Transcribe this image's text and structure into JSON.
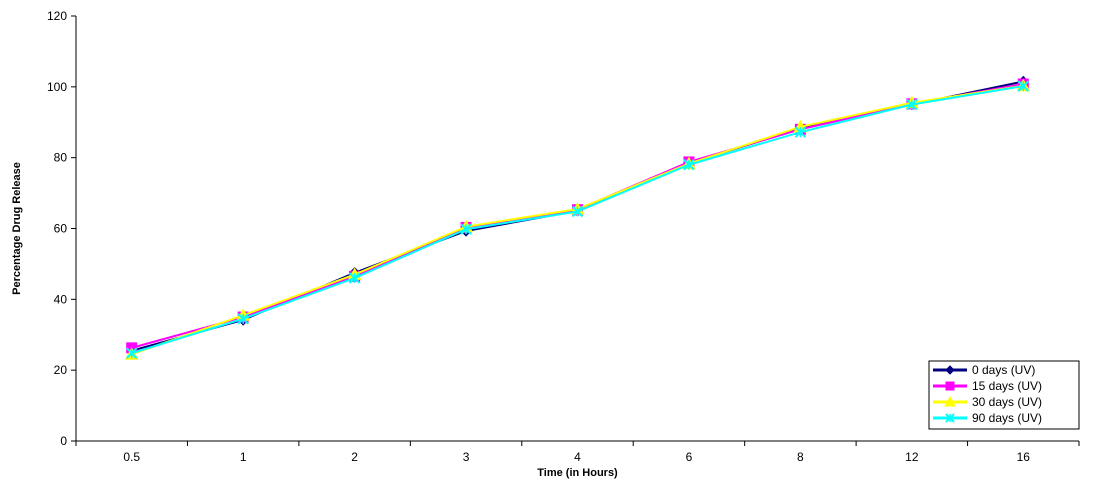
{
  "chart_data": {
    "type": "line",
    "xlabel": "Time (in Hours)",
    "ylabel": "Percentage Drug Release",
    "categories": [
      "0.5",
      "1",
      "2",
      "3",
      "4",
      "6",
      "8",
      "12",
      "16"
    ],
    "ylim": [
      0,
      120
    ],
    "yticks": [
      "0",
      "20",
      "40",
      "60",
      "80",
      "100",
      "120"
    ],
    "grid": false,
    "legend_position": "bottom-right",
    "series": [
      {
        "name": "0 days (UV)",
        "color": "#000080",
        "marker": "diamond",
        "values": [
          25.5,
          34.2,
          47.5,
          59.3,
          65.0,
          78.5,
          88.2,
          95.0,
          101.5
        ]
      },
      {
        "name": "15 days (UV)",
        "color": "#FF00FF",
        "marker": "square",
        "values": [
          26.3,
          35.0,
          46.5,
          60.3,
          65.3,
          78.8,
          88.0,
          95.2,
          100.8
        ]
      },
      {
        "name": "30 days (UV)",
        "color": "#FFFF00",
        "marker": "triangle",
        "values": [
          24.5,
          35.5,
          47.0,
          60.5,
          65.5,
          78.3,
          88.7,
          95.5,
          100.3
        ]
      },
      {
        "name": "90 days (UV)",
        "color": "#00FFFF",
        "marker": "x",
        "values": [
          24.8,
          34.5,
          46.0,
          59.8,
          64.8,
          78.0,
          87.2,
          95.0,
          100.2
        ]
      }
    ]
  }
}
